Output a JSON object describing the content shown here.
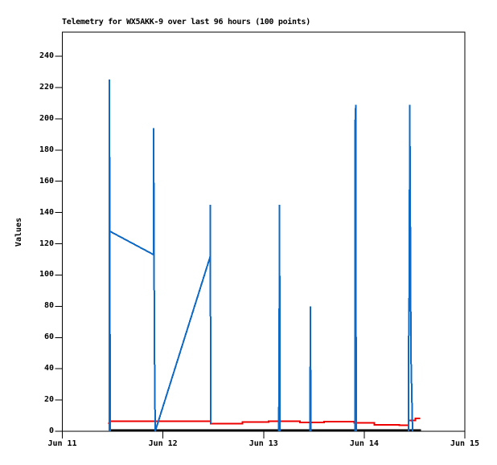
{
  "title": "Telemetry for WX5AKK-9 over last 96 hours (100 points)",
  "colors": {
    "blue": "#0d69c4",
    "red": "#ee0000",
    "black": "#000000",
    "frame": "#000000",
    "background": "#ffffff"
  },
  "chart_data": {
    "type": "line",
    "title": "Telemetry for WX5AKK-9 over last 96 hours (100 points)",
    "xlabel": "",
    "ylabel": "Values",
    "grid": false,
    "legend": false,
    "x_axis": {
      "unit": "days since Jun 11 (96 hour window)",
      "tick_labels": [
        "Jun 11",
        "Jun 12",
        "Jun 13",
        "Jun 14",
        "Jun 15"
      ],
      "tick_positions_days": [
        0,
        1,
        2,
        3,
        4
      ],
      "range_days": [
        0,
        4
      ]
    },
    "y_axis": {
      "ticks": [
        0,
        20,
        40,
        60,
        80,
        100,
        120,
        140,
        160,
        180,
        200,
        220,
        240
      ],
      "range": [
        0,
        255
      ]
    },
    "series": [
      {
        "name": "telemetry-black-series",
        "color_key": "black",
        "stroke_width": 3,
        "points_format": "[days_since_Jun11, value]",
        "segments": [
          [
            [
              0.4595,
              0.5
            ],
            [
              3.5644,
              0.5
            ]
          ]
        ]
      },
      {
        "name": "telemetry-red-series",
        "color_key": "red",
        "stroke_width": 2,
        "points_format": "[days_since_Jun11, value]",
        "segments": [
          [
            [
              0.4555,
              5.2
            ],
            [
              0.4755,
              5.2
            ],
            [
              0.4755,
              6.3
            ],
            [
              1.4745,
              6.3
            ],
            [
              1.4745,
              5.0
            ],
            [
              1.79,
              5.0
            ],
            [
              1.79,
              5.8
            ],
            [
              2.05,
              5.8
            ],
            [
              2.05,
              6.3
            ],
            [
              2.36,
              6.3
            ],
            [
              2.36,
              5.6
            ],
            [
              2.6,
              5.6
            ],
            [
              2.6,
              6.2
            ],
            [
              2.9,
              6.2
            ],
            [
              2.9,
              5.5
            ],
            [
              3.1,
              5.5
            ],
            [
              3.1,
              4.2
            ],
            [
              3.35,
              4.2
            ],
            [
              3.35,
              3.8
            ],
            [
              3.44,
              3.8
            ],
            [
              3.44,
              7.0
            ],
            [
              3.51,
              7.0
            ],
            [
              3.51,
              8.2
            ],
            [
              3.5564,
              8.2
            ]
          ]
        ]
      },
      {
        "name": "telemetry-blue-series",
        "color_key": "blue",
        "stroke_width": 2,
        "points_format": "[days_since_Jun11, value]",
        "segments": [
          [
            [
              0.4675,
              0
            ],
            [
              0.4675,
              225
            ],
            [
              0.4715,
              128
            ],
            [
              0.4755,
              0
            ]
          ],
          [
            [
              0.4715,
              128
            ],
            [
              0.9071,
              113
            ],
            [
              0.9071,
              194
            ],
            [
              0.9151,
              57
            ],
            [
              0.9231,
              0
            ],
            [
              1.4705,
              112
            ],
            [
              1.4705,
              145
            ],
            [
              1.4745,
              5
            ]
          ],
          [
            [
              2.1507,
              0
            ],
            [
              2.1547,
              48
            ],
            [
              2.1587,
              145
            ],
            [
              2.1627,
              0
            ]
          ],
          [
            [
              2.4615,
              0
            ],
            [
              2.4655,
              80
            ],
            [
              2.4695,
              0
            ]
          ],
          [
            [
              2.9083,
              0
            ],
            [
              2.9083,
              194
            ],
            [
              2.9163,
              209
            ],
            [
              2.9203,
              0
            ]
          ],
          [
            [
              3.4406,
              0
            ],
            [
              3.4406,
              49
            ],
            [
              3.4486,
              97
            ],
            [
              3.4526,
              209
            ],
            [
              3.4606,
              105
            ],
            [
              3.4646,
              49
            ],
            [
              3.4805,
              0
            ]
          ]
        ]
      }
    ]
  }
}
